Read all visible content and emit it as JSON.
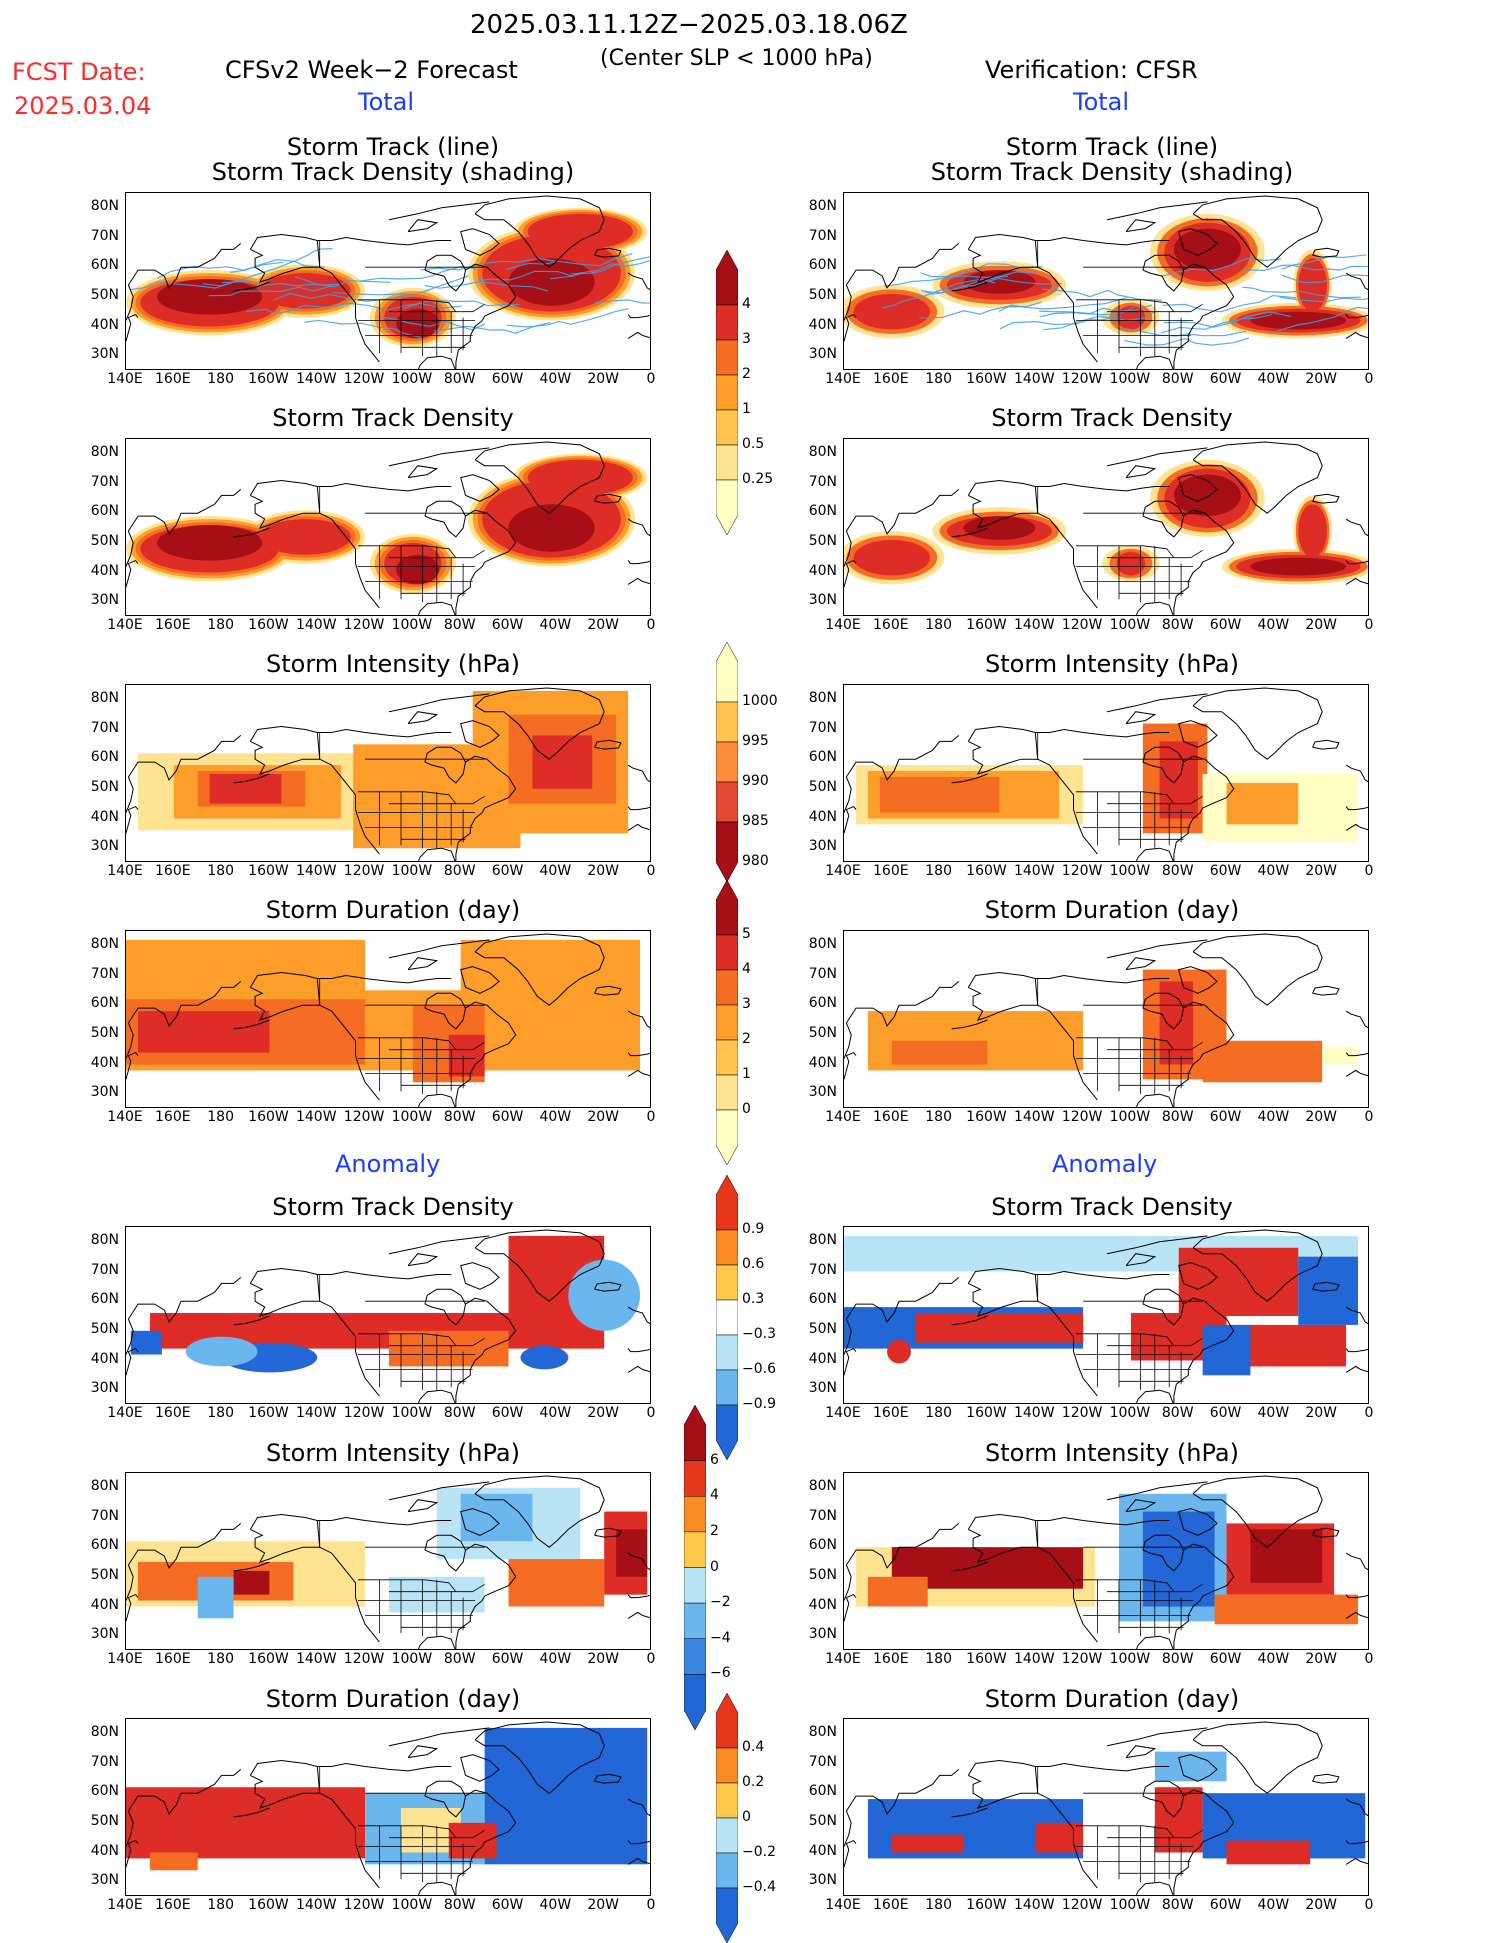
{
  "header": {
    "period": "2025.03.11.12Z−2025.03.18.06Z",
    "criterion": "(Center SLP < 1000 hPa)",
    "fcst_label": "FCST Date:",
    "fcst_date": "2025.03.04",
    "left_title": "CFSv2 Week−2 Forecast",
    "right_title": "Verification: CFSR",
    "total_label": "Total",
    "anomaly_label": "Anomaly"
  },
  "panel_titles": {
    "track1": "Storm Track (line)",
    "track2": "Storm Track Density (shading)",
    "density": "Storm Track Density",
    "intensity": "Storm Intensity (hPa)",
    "duration": "Storm Duration (day)"
  },
  "axes": {
    "lon_ticks": [
      "140E",
      "160E",
      "180",
      "160W",
      "140W",
      "120W",
      "100W",
      "80W",
      "60W",
      "40W",
      "20W",
      "0"
    ],
    "lat_ticks": [
      "80N",
      "70N",
      "60N",
      "50N",
      "40N",
      "30N"
    ],
    "lon_range": [
      140,
      360
    ],
    "lat_range": [
      25,
      85
    ]
  },
  "colorbars": {
    "density_total": {
      "labels": [
        "4",
        "3",
        "2",
        "1",
        "0.5",
        "0.25"
      ],
      "colors": [
        "#a50f15",
        "#de2d26",
        "#f46d22",
        "#fd9e2a",
        "#fec44f",
        "#fee391",
        "#ffffc4"
      ]
    },
    "intensity_total": {
      "labels": [
        "1000",
        "995",
        "990",
        "985",
        "980"
      ],
      "colors": [
        "#ffffc4",
        "#fec44f",
        "#fd8d3c",
        "#e34a33",
        "#a50f15"
      ]
    },
    "duration_total": {
      "labels": [
        "5",
        "4",
        "3",
        "2",
        "1",
        "0"
      ],
      "colors": [
        "#a50f15",
        "#de2d26",
        "#f46d22",
        "#fd9e2a",
        "#fec44f",
        "#fee391",
        "#ffffc4"
      ]
    },
    "density_anom": {
      "labels": [
        "0.9",
        "0.6",
        "0.3",
        "−0.3",
        "−0.6",
        "−0.9"
      ],
      "colors": [
        "#e8361c",
        "#fa8a24",
        "#fec84a",
        "#ffffff",
        "#b9e4f5",
        "#6cb6ee",
        "#2267d5"
      ]
    },
    "intensity_anom": {
      "labels": [
        "6",
        "4",
        "2",
        "0",
        "−2",
        "−4",
        "−6"
      ],
      "colors": [
        "#a50f15",
        "#e8361c",
        "#fa8a24",
        "#fec84a",
        "#b9e4f5",
        "#6cb6ee",
        "#3a86e0",
        "#2267d5"
      ]
    },
    "duration_anom": {
      "labels": [
        "0.4",
        "0.2",
        "0",
        "−0.2",
        "−0.4"
      ],
      "colors": [
        "#e8361c",
        "#fa8a24",
        "#fec84a",
        "#b9e4f5",
        "#6cb6ee",
        "#2267d5"
      ]
    }
  },
  "map_colors": {
    "dark_red": "#a50f15",
    "red": "#de2d26",
    "orange": "#f46d22",
    "light_orange": "#fd9e2a",
    "yellow": "#fee391",
    "pale": "#ffffc4",
    "blue": "#2267d5",
    "light_blue": "#6cb6ee",
    "pale_blue": "#b9e4f5",
    "track_line": "#3aa0e8"
  }
}
